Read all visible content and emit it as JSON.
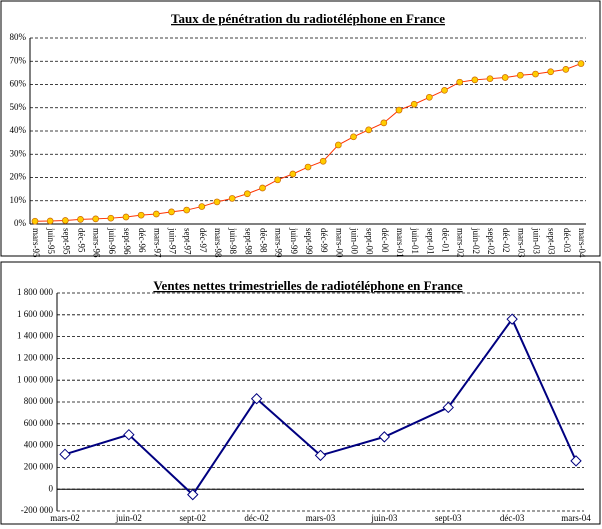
{
  "chart_data": [
    {
      "type": "line",
      "title": "Taux de pénétration du radiotéléphone en France",
      "categories": [
        "mars-95",
        "juin-95",
        "sept-95",
        "déc-95",
        "mars-96",
        "juin-96",
        "sept-96",
        "déc-96",
        "mars-97",
        "juin-97",
        "sept-97",
        "déc-97",
        "mars-98",
        "juin-98",
        "sept-98",
        "déc-98",
        "mars-99",
        "juin-99",
        "sept-99",
        "déc-99",
        "mars-00",
        "juin-00",
        "sept-00",
        "déc-00",
        "mars-01",
        "juin-01",
        "sept-01",
        "déc-01",
        "mars-02",
        "juin-02",
        "sept-02",
        "déc-02",
        "mars-03",
        "juin-03",
        "sept-03",
        "déc-03",
        "mars-04"
      ],
      "values": [
        1.2,
        1.3,
        1.5,
        2.0,
        2.2,
        2.5,
        3.0,
        3.8,
        4.3,
        5.2,
        6.0,
        7.5,
        9.5,
        11.0,
        13.0,
        15.5,
        19.0,
        21.5,
        24.5,
        27.0,
        34.0,
        37.5,
        40.5,
        43.5,
        49.0,
        51.5,
        54.5,
        57.5,
        61.0,
        62.0,
        62.5,
        63.0,
        64.0,
        64.5,
        65.5,
        66.5,
        69.0
      ],
      "color": "#ff3300",
      "marker_color": "#ffcc00",
      "marker": "circle",
      "ylim": [
        0,
        80
      ],
      "yticks": [
        {
          "value": 0,
          "label": "0%"
        },
        {
          "value": 10,
          "label": "10%"
        },
        {
          "value": 20,
          "label": "20%"
        },
        {
          "value": 30,
          "label": "30%"
        },
        {
          "value": 40,
          "label": "40%"
        },
        {
          "value": 50,
          "label": "50%"
        },
        {
          "value": 60,
          "label": "60%"
        },
        {
          "value": 70,
          "label": "70%"
        },
        {
          "value": 80,
          "label": "80%"
        }
      ],
      "grid": true,
      "rotate_labels": true
    },
    {
      "type": "line",
      "title": "Ventes nettes trimestrielles de radiotéléphone en France",
      "categories": [
        "mars-02",
        "juin-02",
        "sept-02",
        "déc-02",
        "mars-03",
        "juin-03",
        "sept-03",
        "déc-03",
        "mars-04"
      ],
      "values": [
        320000,
        500000,
        -50000,
        830000,
        310000,
        480000,
        750000,
        1560000,
        260000
      ],
      "color": "#000080",
      "marker_color": "#ffffff",
      "marker": "diamond",
      "ylim": [
        -200000,
        1800000
      ],
      "yticks": [
        {
          "value": -200000,
          "label": "-200 000"
        },
        0,
        {
          "value": 200000,
          "label": "200 000"
        },
        {
          "value": 400000,
          "label": "400 000"
        },
        {
          "value": 600000,
          "label": "600 000"
        },
        {
          "value": 800000,
          "label": "800 000"
        },
        {
          "value": 1000000,
          "label": "1 000 000"
        },
        {
          "value": 1200000,
          "label": "1 200 000"
        },
        {
          "value": 1400000,
          "label": "1 400 000"
        },
        {
          "value": 1600000,
          "label": "1 600 000"
        },
        {
          "value": 1800000,
          "label": "1 800 000"
        }
      ],
      "grid": true,
      "rotate_labels": false
    }
  ]
}
